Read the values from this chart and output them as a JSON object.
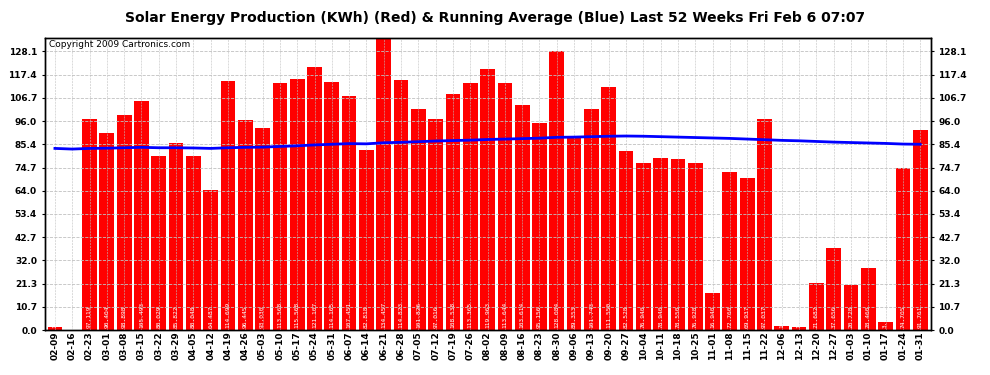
{
  "title": "Solar Energy Production (KWh) (Red) & Running Average (Blue) Last 52 Weeks Fri Feb 6 07:07",
  "copyright": "Copyright 2009 Cartronics.com",
  "bar_color": "#FF0000",
  "avg_line_color": "#0000FF",
  "background_color": "#FFFFFF",
  "grid_color": "#C0C0C0",
  "categories": [
    "02-09",
    "02-16",
    "02-23",
    "03-01",
    "03-08",
    "03-15",
    "03-22",
    "03-29",
    "04-05",
    "04-12",
    "04-19",
    "04-26",
    "05-03",
    "05-10",
    "05-17",
    "05-24",
    "05-31",
    "06-07",
    "06-14",
    "06-21",
    "06-28",
    "07-05",
    "07-12",
    "07-19",
    "07-26",
    "08-02",
    "08-09",
    "08-16",
    "08-23",
    "08-30",
    "09-06",
    "09-13",
    "09-20",
    "09-27",
    "10-04",
    "10-11",
    "10-18",
    "10-25",
    "11-01",
    "11-08",
    "11-15",
    "11-22",
    "12-06",
    "12-13",
    "12-20",
    "12-27",
    "01-03",
    "01-10",
    "01-17",
    "01-24",
    "01-31"
  ],
  "values": [
    1.413,
    0.0,
    97.119,
    90.404,
    98.898,
    105.493,
    80.029,
    85.822,
    80.048,
    64.487,
    114.699,
    96.445,
    93.03,
    113.568,
    115.568,
    121.107,
    114.165,
    107.451,
    82.818,
    134.457,
    114.823,
    101.826,
    97.016,
    108.538,
    113.365,
    119.963,
    113.644,
    103.614,
    95.156,
    128.084,
    89.353,
    101.743,
    111.55,
    82.528,
    76.94,
    78.94,
    78.55,
    76.928,
    16.94,
    72.76,
    69.937,
    97.037,
    1.65,
    1.388,
    21.682,
    37.656,
    20.728,
    28.46,
    3.45,
    74.705,
    91.761
  ],
  "running_avg": [
    83.5,
    83.2,
    83.5,
    83.6,
    83.8,
    84.0,
    83.8,
    83.8,
    83.7,
    83.5,
    83.8,
    84.0,
    84.1,
    84.4,
    84.7,
    85.1,
    85.4,
    85.7,
    85.6,
    86.1,
    86.3,
    86.6,
    86.9,
    87.1,
    87.3,
    87.6,
    87.8,
    88.0,
    88.2,
    88.6,
    88.7,
    88.9,
    89.1,
    89.2,
    89.1,
    88.9,
    88.7,
    88.5,
    88.3,
    88.1,
    87.8,
    87.5,
    87.2,
    87.0,
    86.7,
    86.4,
    86.2,
    86.0,
    85.8,
    85.5,
    85.4
  ],
  "ylim": [
    0,
    134.5
  ],
  "yticks": [
    0.0,
    10.7,
    21.3,
    32.0,
    42.7,
    53.4,
    64.0,
    74.7,
    85.4,
    96.0,
    106.7,
    117.4,
    128.1
  ],
  "title_fontsize": 10,
  "copyright_fontsize": 6.5,
  "bar_value_fontsize": 4.5,
  "tick_fontsize": 6.5,
  "xlabel_rotation": 90
}
